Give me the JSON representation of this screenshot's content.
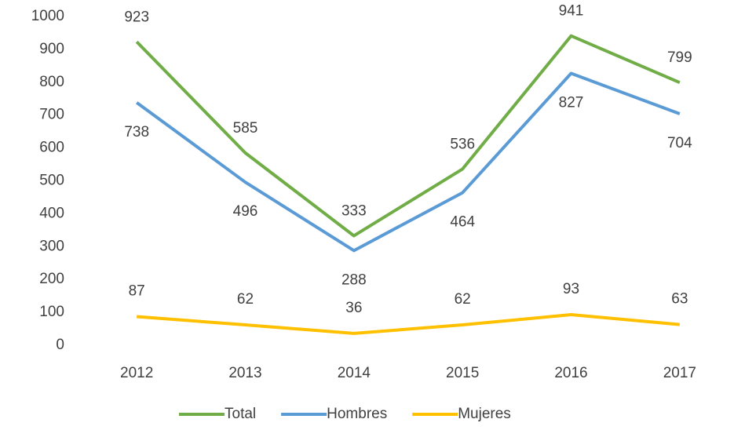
{
  "chart_data": {
    "type": "line",
    "categories": [
      "2012",
      "2013",
      "2014",
      "2015",
      "2016",
      "2017"
    ],
    "series": [
      {
        "name": "Total",
        "color": "#70ad47",
        "values": [
          923,
          585,
          333,
          536,
          941,
          799
        ]
      },
      {
        "name": "Hombres",
        "color": "#5b9bd5",
        "values": [
          738,
          496,
          288,
          464,
          827,
          704
        ]
      },
      {
        "name": "Mujeres",
        "color": "#ffc000",
        "values": [
          87,
          62,
          36,
          62,
          93,
          63
        ]
      }
    ],
    "ylim": [
      0,
      1000
    ],
    "yticks": [
      0,
      100,
      200,
      300,
      400,
      500,
      600,
      700,
      800,
      900,
      1000
    ],
    "grid": false,
    "legend": "bottom"
  }
}
